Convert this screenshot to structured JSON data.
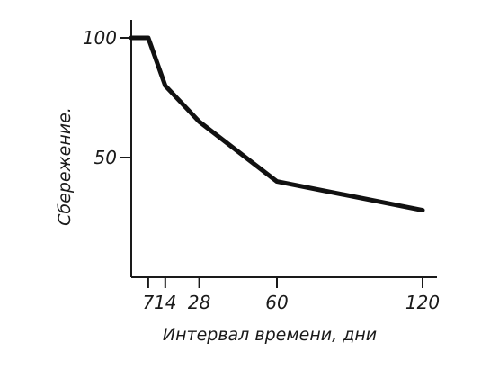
{
  "chart_data": {
    "type": "line",
    "xlabel": "Интервал времени, дни",
    "ylabel": "Сбережение.",
    "x_ticks": [
      7,
      14,
      28,
      60,
      120
    ],
    "y_ticks": [
      50,
      100
    ],
    "x_tick_labels": [
      "7",
      "14",
      "28",
      "60",
      "120"
    ],
    "y_tick_labels": [
      "50",
      "100"
    ],
    "xlim": [
      0,
      120
    ],
    "ylim": [
      0,
      100
    ],
    "grid": false,
    "series": [
      {
        "x": [
          0,
          7,
          14,
          28,
          60,
          120
        ],
        "y": [
          100,
          100,
          80,
          65,
          40,
          28
        ]
      }
    ]
  }
}
